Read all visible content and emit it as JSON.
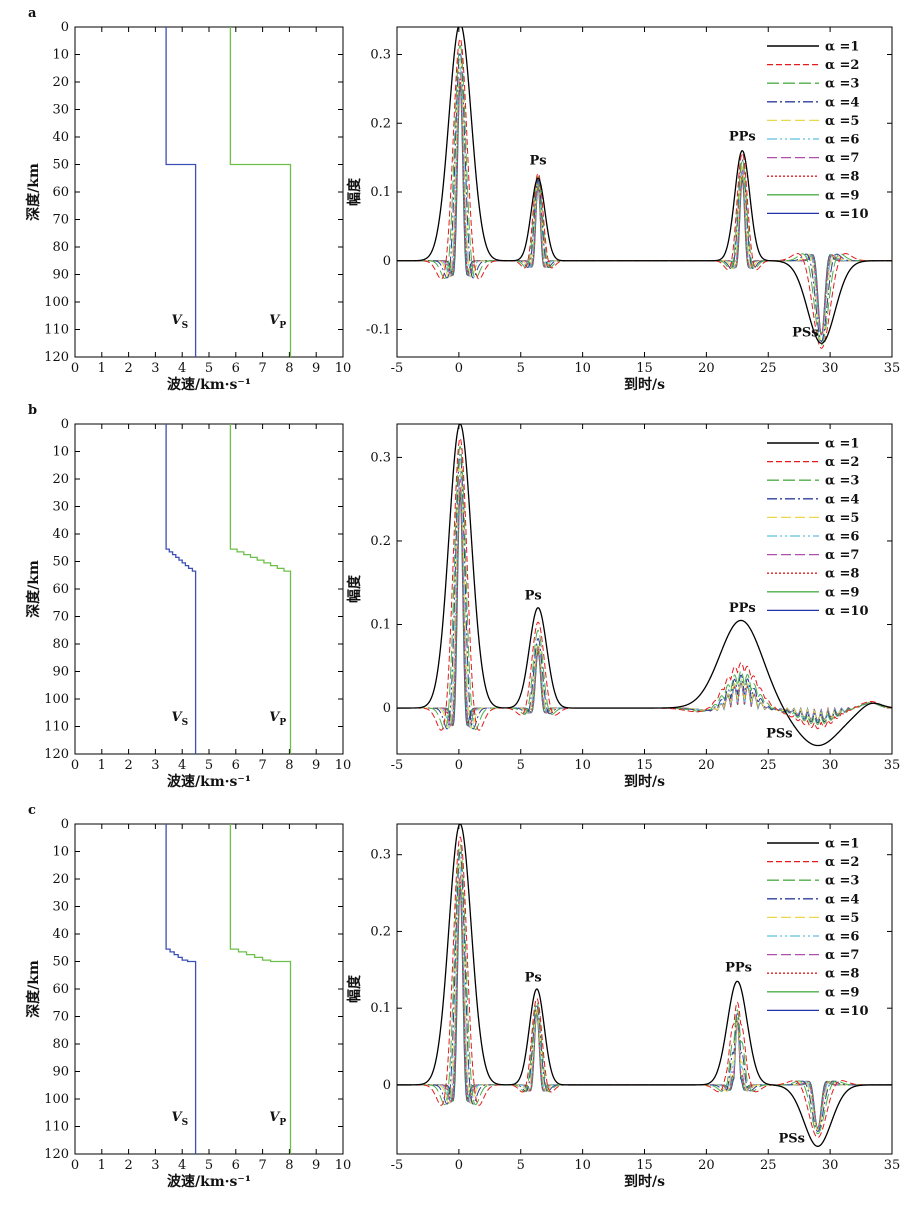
{
  "figure": {
    "legend_labels": [
      "α =1",
      "α =2",
      "α =3",
      "α =4",
      "α =5",
      "α =6",
      "α =7",
      "α =8",
      "α =9",
      "α =10"
    ],
    "series_styles": [
      {
        "color": "#000000",
        "dash": ""
      },
      {
        "color": "#e41a1c",
        "dash": "6,3"
      },
      {
        "color": "#4daf4a",
        "dash": "12,4"
      },
      {
        "color": "#2c3e9e",
        "dash": "10,3,2,3"
      },
      {
        "color": "#e8d84a",
        "dash": "10,4"
      },
      {
        "color": "#5bc0de",
        "dash": "10,3,2,3,2,3"
      },
      {
        "color": "#b04fb0",
        "dash": "10,4"
      },
      {
        "color": "#e41a1c",
        "dash": "2,2"
      },
      {
        "color": "#4daf4a",
        "dash": ""
      },
      {
        "color": "#2233aa",
        "dash": ""
      }
    ],
    "vs_color": "#3b4fb5",
    "vp_color": "#6cc04a"
  },
  "panels": [
    {
      "label": "a",
      "velocity": {
        "xlabel": "波速/km·s⁻¹",
        "ylabel": "深度/km",
        "xlim": [
          0,
          10
        ],
        "ylim": [
          0,
          120
        ],
        "vs_label_main": "V",
        "vs_label_sub": "S",
        "vp_label_main": "V",
        "vp_label_sub": "P",
        "vs_profile": [
          [
            3.4,
            0
          ],
          [
            3.4,
            50
          ],
          [
            4.5,
            50
          ],
          [
            4.5,
            120
          ]
        ],
        "vp_profile": [
          [
            5.8,
            0
          ],
          [
            5.8,
            50
          ],
          [
            8.04,
            50
          ],
          [
            8.04,
            120
          ]
        ]
      },
      "rf": {
        "xlabel": "到时/s",
        "ylabel": "幅度",
        "xlim": [
          -5,
          35
        ],
        "ylim": [
          -0.14,
          0.34
        ],
        "yticks": [
          -0.1,
          0,
          0.1,
          0.2,
          0.3
        ],
        "annotations": [
          {
            "text": "Ps",
            "x": 6.4,
            "y": 0.14
          },
          {
            "text": "PPs",
            "x": 22.9,
            "y": 0.175
          },
          {
            "text": "PSs",
            "x": 28.0,
            "y": -0.11
          }
        ],
        "phases": [
          {
            "t": 0.1,
            "amp": [
              0.345,
              0.33,
              0.32,
              0.31,
              0.3,
              0.29,
              0.28,
              0.27,
              0.265,
              0.26
            ],
            "width": [
              0.9,
              0.55,
              0.45,
              0.38,
              0.33,
              0.3,
              0.27,
              0.25,
              0.23,
              0.21
            ]
          },
          {
            "t": 6.4,
            "amp": [
              0.12,
              0.13,
              0.125,
              0.12,
              0.12,
              0.118,
              0.118,
              0.115,
              0.112,
              0.11
            ],
            "width": [
              0.55,
              0.4,
              0.35,
              0.3,
              0.27,
              0.24,
              0.22,
              0.2,
              0.19,
              0.18
            ]
          },
          {
            "t": 22.9,
            "amp": [
              0.16,
              0.16,
              0.15,
              0.15,
              0.14,
              0.14,
              0.135,
              0.13,
              0.125,
              0.12
            ],
            "width": [
              0.6,
              0.42,
              0.36,
              0.32,
              0.28,
              0.25,
              0.23,
              0.21,
              0.2,
              0.19
            ]
          },
          {
            "t": 29.3,
            "amp": [
              -0.12,
              -0.13,
              -0.125,
              -0.12,
              -0.12,
              -0.12,
              -0.11,
              -0.11,
              -0.11,
              -0.11
            ],
            "width": [
              1.1,
              0.7,
              0.55,
              0.45,
              0.4,
              0.35,
              0.32,
              0.3,
              0.28,
              0.26
            ]
          }
        ]
      }
    },
    {
      "label": "b",
      "velocity": {
        "xlabel": "波速/km·s⁻¹",
        "ylabel": "深度/km",
        "xlim": [
          0,
          10
        ],
        "ylim": [
          0,
          120
        ],
        "vs_label_main": "V",
        "vs_label_sub": "S",
        "vp_label_main": "V",
        "vp_label_sub": "P",
        "vs_profile": [
          [
            3.4,
            0
          ],
          [
            3.4,
            45.5
          ],
          [
            3.52,
            45.5
          ],
          [
            3.52,
            46.5
          ],
          [
            3.64,
            46.5
          ],
          [
            3.64,
            47.5
          ],
          [
            3.76,
            47.5
          ],
          [
            3.76,
            48.5
          ],
          [
            3.88,
            48.5
          ],
          [
            3.88,
            49.5
          ],
          [
            4.0,
            49.5
          ],
          [
            4.0,
            50.5
          ],
          [
            4.12,
            50.5
          ],
          [
            4.12,
            51.5
          ],
          [
            4.24,
            51.5
          ],
          [
            4.24,
            52.5
          ],
          [
            4.38,
            52.5
          ],
          [
            4.38,
            53.5
          ],
          [
            4.5,
            53.5
          ],
          [
            4.5,
            120
          ]
        ],
        "vp_profile": [
          [
            5.8,
            0
          ],
          [
            5.8,
            45.5
          ],
          [
            6.05,
            45.5
          ],
          [
            6.05,
            46.5
          ],
          [
            6.3,
            46.5
          ],
          [
            6.3,
            47.5
          ],
          [
            6.55,
            47.5
          ],
          [
            6.55,
            48.5
          ],
          [
            6.8,
            48.5
          ],
          [
            6.8,
            49.5
          ],
          [
            7.05,
            49.5
          ],
          [
            7.05,
            50.5
          ],
          [
            7.3,
            50.5
          ],
          [
            7.3,
            51.5
          ],
          [
            7.55,
            51.5
          ],
          [
            7.55,
            52.5
          ],
          [
            7.8,
            52.5
          ],
          [
            7.8,
            53.5
          ],
          [
            8.04,
            53.5
          ],
          [
            8.04,
            120
          ]
        ]
      },
      "rf": {
        "xlabel": "到时/s",
        "ylabel": "幅度",
        "xlim": [
          -5,
          35
        ],
        "ylim": [
          -0.055,
          0.34
        ],
        "yticks": [
          0,
          0.1,
          0.2,
          0.3
        ],
        "annotations": [
          {
            "text": "Ps",
            "x": 6.0,
            "y": 0.13
          },
          {
            "text": "PPs",
            "x": 22.9,
            "y": 0.115
          },
          {
            "text": "PSs",
            "x": 25.9,
            "y": -0.035
          }
        ],
        "phases": [
          {
            "t": 0.1,
            "amp": [
              0.34,
              0.33,
              0.32,
              0.31,
              0.3,
              0.29,
              0.28,
              0.27,
              0.265,
              0.26
            ],
            "width": [
              0.9,
              0.55,
              0.45,
              0.38,
              0.33,
              0.3,
              0.27,
              0.25,
              0.23,
              0.21
            ]
          },
          {
            "t": 6.4,
            "amp": [
              0.12,
              0.105,
              0.095,
              0.085,
              0.08,
              0.078,
              0.075,
              0.072,
              0.07,
              0.068
            ],
            "width": [
              0.7,
              0.5,
              0.4,
              0.34,
              0.3,
              0.27,
              0.25,
              0.23,
              0.21,
              0.2
            ]
          },
          {
            "t": 22.8,
            "amp": [
              0.105,
              0.055,
              0.045,
              0.04,
              0.035,
              0.033,
              0.032,
              0.03,
              0.03,
              0.03
            ],
            "width": [
              1.7,
              1.3,
              1.2,
              1.1,
              1.0,
              1.0,
              1.0,
              1.0,
              1.0,
              1.0
            ],
            "ripple": [
              0,
              0.2,
              0.4,
              0.6,
              0.7,
              0.8,
              0.85,
              0.9,
              0.9,
              0.9
            ]
          },
          {
            "t": 29.0,
            "amp": [
              -0.045,
              -0.025,
              -0.02,
              -0.018,
              -0.017,
              -0.016,
              -0.016,
              -0.015,
              -0.015,
              -0.015
            ],
            "width": [
              1.8,
              1.5,
              1.5,
              1.5,
              1.5,
              1.5,
              1.5,
              1.5,
              1.5,
              1.5
            ],
            "ripple": [
              0,
              0.3,
              0.5,
              0.7,
              0.8,
              0.85,
              0.9,
              0.9,
              0.9,
              0.9
            ]
          },
          {
            "t": 33.3,
            "amp": [
              0.008,
              0.006,
              0.005,
              0.005,
              0.005,
              0.005,
              0.005,
              0.005,
              0.005,
              0.005
            ],
            "width": [
              0.8,
              0.7,
              0.6,
              0.6,
              0.6,
              0.6,
              0.6,
              0.6,
              0.6,
              0.6
            ]
          }
        ]
      }
    },
    {
      "label": "c",
      "velocity": {
        "xlabel": "波速/km·s⁻¹",
        "ylabel": "深度/km",
        "xlim": [
          0,
          10
        ],
        "ylim": [
          0,
          120
        ],
        "vs_label_main": "V",
        "vs_label_sub": "S",
        "vp_label_main": "V",
        "vp_label_sub": "P",
        "vs_profile": [
          [
            3.4,
            0
          ],
          [
            3.4,
            45.5
          ],
          [
            3.55,
            45.5
          ],
          [
            3.55,
            46.5
          ],
          [
            3.7,
            46.5
          ],
          [
            3.7,
            47.5
          ],
          [
            3.85,
            47.5
          ],
          [
            3.85,
            48.5
          ],
          [
            4.0,
            48.5
          ],
          [
            4.0,
            49.5
          ],
          [
            4.2,
            49.5
          ],
          [
            4.2,
            50
          ],
          [
            4.5,
            50
          ],
          [
            4.5,
            120
          ]
        ],
        "vp_profile": [
          [
            5.8,
            0
          ],
          [
            5.8,
            45.5
          ],
          [
            6.1,
            45.5
          ],
          [
            6.1,
            46.5
          ],
          [
            6.4,
            46.5
          ],
          [
            6.4,
            47.5
          ],
          [
            6.7,
            47.5
          ],
          [
            6.7,
            48.5
          ],
          [
            7.0,
            48.5
          ],
          [
            7.0,
            49.5
          ],
          [
            7.3,
            49.5
          ],
          [
            7.3,
            50
          ],
          [
            8.04,
            50
          ],
          [
            8.04,
            120
          ]
        ]
      },
      "rf": {
        "xlabel": "到时/s",
        "ylabel": "幅度",
        "xlim": [
          -5,
          35
        ],
        "ylim": [
          -0.09,
          0.34
        ],
        "yticks": [
          0,
          0.1,
          0.2,
          0.3
        ],
        "annotations": [
          {
            "text": "Ps",
            "x": 6.0,
            "y": 0.135
          },
          {
            "text": "PPs",
            "x": 22.6,
            "y": 0.148
          },
          {
            "text": "PSs",
            "x": 26.9,
            "y": -0.075
          }
        ],
        "phases": [
          {
            "t": 0.1,
            "amp": [
              0.34,
              0.33,
              0.32,
              0.31,
              0.3,
              0.29,
              0.28,
              0.27,
              0.265,
              0.26
            ],
            "width": [
              0.9,
              0.55,
              0.45,
              0.38,
              0.33,
              0.3,
              0.27,
              0.25,
              0.23,
              0.21
            ]
          },
          {
            "t": 6.3,
            "amp": [
              0.125,
              0.115,
              0.11,
              0.105,
              0.1,
              0.1,
              0.1,
              0.098,
              0.095,
              0.095
            ],
            "width": [
              0.6,
              0.42,
              0.36,
              0.32,
              0.28,
              0.25,
              0.23,
              0.21,
              0.2,
              0.19
            ]
          },
          {
            "t": 22.5,
            "amp": [
              0.135,
              0.11,
              0.1,
              0.095,
              0.09,
              0.088,
              0.086,
              0.085,
              0.085,
              0.085
            ],
            "width": [
              0.8,
              0.55,
              0.45,
              0.38,
              0.33,
              0.3,
              0.27,
              0.25,
              0.23,
              0.21
            ],
            "ripple": [
              0,
              0.15,
              0.3,
              0.4,
              0.5,
              0.55,
              0.6,
              0.6,
              0.6,
              0.6
            ]
          },
          {
            "t": 29.0,
            "amp": [
              -0.08,
              -0.07,
              -0.065,
              -0.062,
              -0.06,
              -0.06,
              -0.06,
              -0.058,
              -0.058,
              -0.058
            ],
            "width": [
              1.1,
              0.7,
              0.55,
              0.45,
              0.4,
              0.35,
              0.32,
              0.3,
              0.28,
              0.26
            ]
          }
        ]
      }
    }
  ]
}
